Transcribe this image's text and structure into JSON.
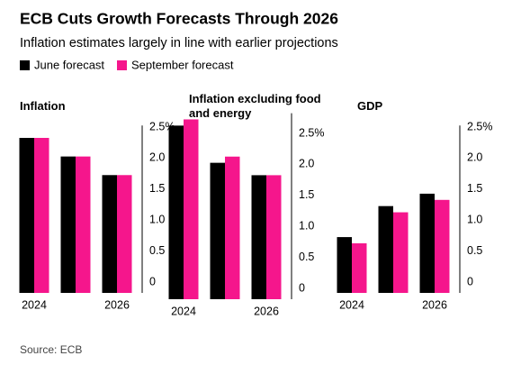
{
  "title": "ECB Cuts Growth Forecasts Through 2026",
  "subtitle": "Inflation estimates largely in line with earlier projections",
  "source": "Source: ECB",
  "chart_data": [
    {
      "type": "bar",
      "title": "Inflation",
      "categories": [
        "2024",
        null,
        "2026"
      ],
      "series": [
        {
          "name": "June forecast",
          "color": "#000000",
          "values": [
            2.5,
            2.2,
            1.9
          ]
        },
        {
          "name": "September forecast",
          "color": "#f5168c",
          "values": [
            2.5,
            2.2,
            1.9
          ]
        }
      ],
      "ylim": [
        0,
        2.7
      ],
      "yticks": [
        0,
        0.5,
        {
          "value": 1,
          "label": "1.0"
        },
        1.5,
        {
          "value": 2,
          "label": "2.0"
        },
        {
          "value": 2.5,
          "label": "2.5%"
        }
      ]
    },
    {
      "type": "bar",
      "title": "Inflation excluding food and energy",
      "categories": [
        "2024",
        null,
        "2026"
      ],
      "series": [
        {
          "name": "June forecast",
          "color": "#000000",
          "values": [
            2.8,
            2.2,
            2.0
          ]
        },
        {
          "name": "September forecast",
          "color": "#f5168c",
          "values": [
            2.9,
            2.3,
            2.0
          ]
        }
      ],
      "ylim": [
        0,
        3.0
      ],
      "yticks": [
        0,
        0.5,
        {
          "value": 1,
          "label": "1.0"
        },
        1.5,
        {
          "value": 2,
          "label": "2.0"
        },
        {
          "value": 2.5,
          "label": "2.5%"
        }
      ]
    },
    {
      "type": "bar",
      "title": "GDP",
      "categories": [
        "2024",
        null,
        "2026"
      ],
      "series": [
        {
          "name": "June forecast",
          "color": "#000000",
          "values": [
            0.9,
            1.4,
            1.6
          ]
        },
        {
          "name": "September forecast",
          "color": "#f5168c",
          "values": [
            0.8,
            1.3,
            1.5
          ]
        }
      ],
      "ylim": [
        0,
        2.7
      ],
      "yticks": [
        0,
        0.5,
        {
          "value": 1,
          "label": "1.0"
        },
        1.5,
        {
          "value": 2,
          "label": "2.0"
        },
        {
          "value": 2.5,
          "label": "2.5%"
        }
      ]
    }
  ]
}
